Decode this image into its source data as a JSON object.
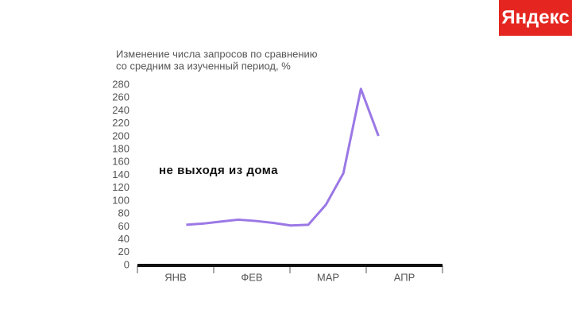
{
  "brand": "Яндекс",
  "chart_data": {
    "type": "line",
    "y_label_lines": [
      "Изменение числа запросов по сравнению",
      "со средним за изученный период, %"
    ],
    "annotation": "не выходя из дома",
    "categories": [
      "ЯНВ",
      "ФЕВ",
      "МАР",
      "АПР"
    ],
    "xlim": [
      0,
      4
    ],
    "x": [
      0.64,
      0.87,
      1.09,
      1.32,
      1.55,
      1.78,
      2.01,
      2.24,
      2.47,
      2.7,
      2.93,
      3.16
    ],
    "series": [
      {
        "name": "не выходя из дома",
        "color": "#9b78e6",
        "values": [
          63,
          65,
          68,
          71,
          69,
          66,
          62,
          63,
          94,
          143,
          274,
          201
        ]
      }
    ],
    "ylim": [
      0,
      280
    ],
    "yticks": [
      0,
      20,
      40,
      60,
      80,
      100,
      120,
      140,
      160,
      180,
      200,
      220,
      240,
      260,
      280
    ]
  }
}
